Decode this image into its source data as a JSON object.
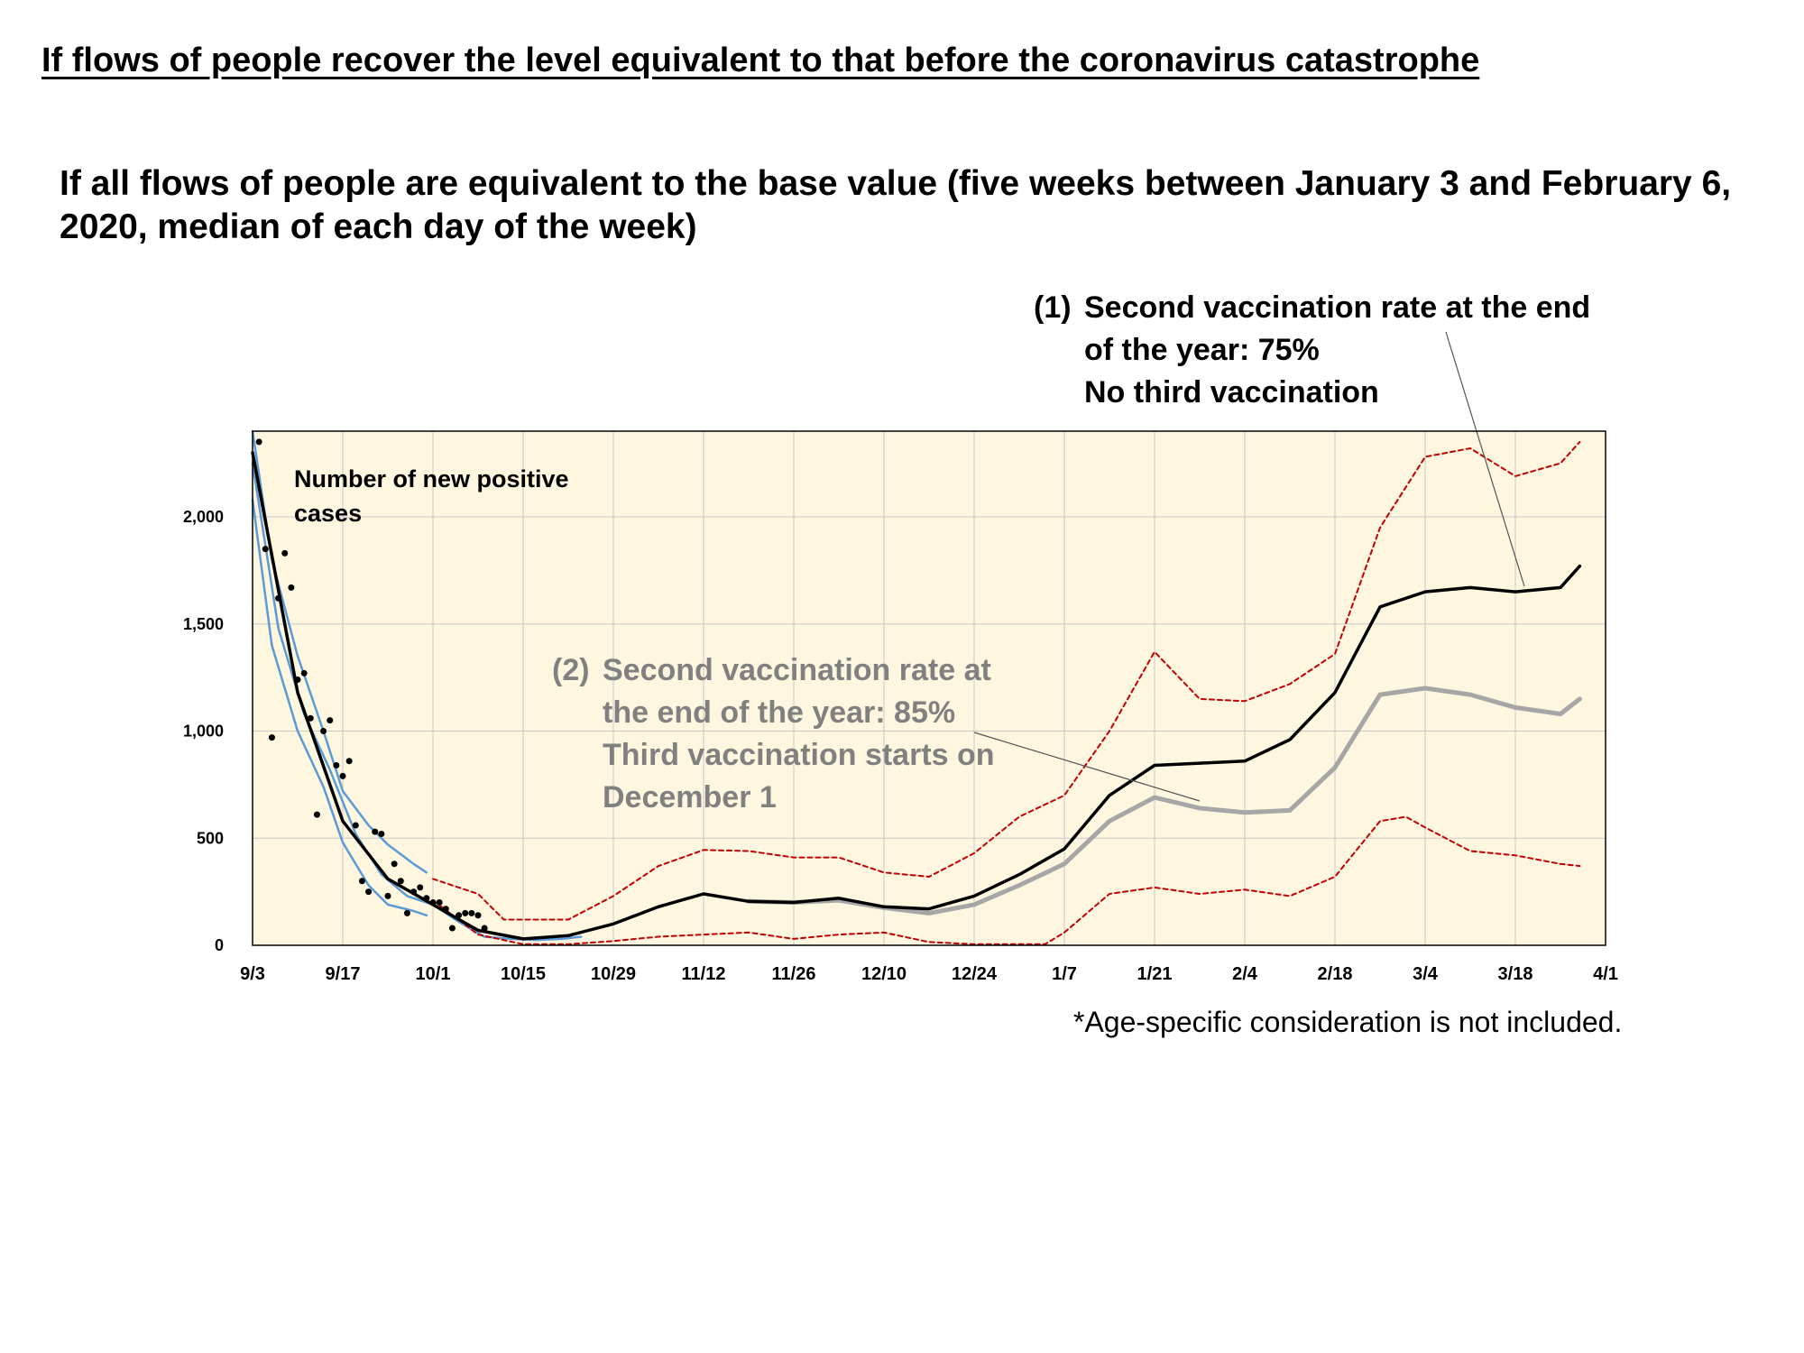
{
  "header": {
    "title": "If flows of people recover the level equivalent to that before the coronavirus catastrophe",
    "subtitle": "If all flows of people are equivalent to the base value (five weeks between January 3 and February 6, 2020, median of each day of the week)"
  },
  "annotations": {
    "scenario1": {
      "number": "(1)",
      "lines": [
        "Second vaccination rate at the end",
        "of the year: 75%",
        "No third vaccination"
      ]
    },
    "scenario2": {
      "number": "(2)",
      "lines": [
        "Second vaccination rate at",
        "the end of the year: 85%",
        "Third vaccination starts on",
        "December 1"
      ]
    },
    "note": "*Age-specific consideration is not included."
  },
  "colors": {
    "plot_background": "#fff6e0",
    "grid": "#c8c8c8",
    "scenario1_line": "#000000",
    "scenario2_line": "#a6a6a6",
    "interval_band": "#c00000",
    "fitted_band": "#5b9bd5",
    "observed_points": "#000000"
  },
  "chart_data": {
    "type": "line",
    "title": "",
    "xlabel": "",
    "ylabel": "Number of new positive cases",
    "x_domain": [
      "9/3",
      "4/1"
    ],
    "ylim": [
      0,
      2400
    ],
    "grid": true,
    "y_ticks": [
      0,
      500,
      1000,
      1500,
      2000
    ],
    "y_tick_labels": [
      "0",
      "500",
      "1,000",
      "1,500",
      "2,000"
    ],
    "x_ticks": [
      "9/3",
      "9/17",
      "10/1",
      "10/15",
      "10/29",
      "11/12",
      "11/26",
      "12/10",
      "12/24",
      "1/7",
      "1/21",
      "2/4",
      "2/18",
      "3/4",
      "3/18",
      "4/1"
    ],
    "series": [
      {
        "name": "(1)",
        "style": "solid-black",
        "x": [
          "9/3",
          "9/10",
          "9/17",
          "9/24",
          "10/1",
          "10/8",
          "10/15",
          "10/22",
          "10/29",
          "11/5",
          "11/12",
          "11/19",
          "11/26",
          "12/3",
          "12/10",
          "12/17",
          "12/24",
          "12/31",
          "1/7",
          "1/14",
          "1/21",
          "1/28",
          "2/4",
          "2/11",
          "2/18",
          "2/25",
          "3/4",
          "3/11",
          "3/18",
          "3/25",
          "3/28"
        ],
        "y": [
          2300,
          1180,
          580,
          310,
          190,
          70,
          30,
          45,
          100,
          180,
          240,
          205,
          200,
          220,
          180,
          170,
          230,
          330,
          450,
          700,
          840,
          850,
          860,
          960,
          1180,
          1580,
          1650,
          1670,
          1650,
          1670,
          1770
        ]
      },
      {
        "name": "(2)",
        "style": "solid-gray",
        "x": [
          "11/19",
          "11/26",
          "12/3",
          "12/10",
          "12/17",
          "12/24",
          "12/31",
          "1/7",
          "1/14",
          "1/21",
          "1/28",
          "2/4",
          "2/11",
          "2/18",
          "2/25",
          "3/4",
          "3/11",
          "3/18",
          "3/25",
          "3/28"
        ],
        "y": [
          205,
          200,
          210,
          175,
          150,
          190,
          280,
          380,
          580,
          690,
          640,
          620,
          630,
          830,
          1170,
          1200,
          1170,
          1110,
          1080,
          1150
        ]
      },
      {
        "name": "",
        "style": "dashed-red-upper",
        "x": [
          "10/1",
          "10/8",
          "10/12",
          "10/22",
          "10/29",
          "11/5",
          "11/12",
          "11/19",
          "11/26",
          "12/3",
          "12/10",
          "12/17",
          "12/24",
          "12/31",
          "1/7",
          "1/14",
          "1/21",
          "1/28",
          "2/4",
          "2/11",
          "2/18",
          "2/25",
          "3/4",
          "3/11",
          "3/18",
          "3/25",
          "3/28"
        ],
        "y": [
          310,
          240,
          120,
          120,
          230,
          370,
          445,
          440,
          410,
          410,
          340,
          320,
          430,
          600,
          700,
          1000,
          1370,
          1150,
          1140,
          1220,
          1360,
          1950,
          2280,
          2320,
          2190,
          2250,
          2350
        ]
      },
      {
        "name": "",
        "style": "dashed-red-lower",
        "x": [
          "10/1",
          "10/8",
          "10/15",
          "10/22",
          "10/29",
          "11/5",
          "11/12",
          "11/19",
          "11/26",
          "12/3",
          "12/10",
          "12/17",
          "12/24",
          "12/31",
          "1/4",
          "1/7",
          "1/14",
          "1/21",
          "1/28",
          "2/4",
          "2/11",
          "2/18",
          "2/25",
          "3/1",
          "3/4",
          "3/11",
          "3/18",
          "3/25",
          "3/28"
        ],
        "y": [
          210,
          50,
          5,
          5,
          20,
          40,
          50,
          60,
          30,
          50,
          60,
          15,
          5,
          5,
          5,
          60,
          240,
          270,
          240,
          260,
          230,
          320,
          580,
          600,
          550,
          440,
          420,
          380,
          370
        ]
      },
      {
        "name": "",
        "style": "blue-upper",
        "x": [
          "9/3",
          "9/6",
          "9/10",
          "9/14",
          "9/17",
          "9/21",
          "9/24",
          "9/28",
          "9/30"
        ],
        "y": [
          2400,
          1800,
          1350,
          1000,
          720,
          560,
          470,
          380,
          340
        ]
      },
      {
        "name": "",
        "style": "blue-lower",
        "x": [
          "9/3",
          "9/6",
          "9/10",
          "9/14",
          "9/17",
          "9/21",
          "9/24",
          "9/28",
          "9/30"
        ],
        "y": [
          2080,
          1400,
          1000,
          740,
          480,
          280,
          190,
          160,
          140
        ]
      },
      {
        "name": "",
        "style": "blue-mid",
        "x": [
          "9/3",
          "9/7",
          "9/11",
          "9/15",
          "9/19",
          "9/23",
          "9/27",
          "10/1",
          "10/5",
          "10/9",
          "10/13",
          "10/17",
          "10/21",
          "10/24"
        ],
        "y": [
          2250,
          1480,
          1080,
          820,
          520,
          330,
          230,
          190,
          110,
          40,
          30,
          25,
          30,
          40
        ]
      }
    ],
    "observed_points": {
      "x": [
        "9/4",
        "9/5",
        "9/6",
        "9/7",
        "9/8",
        "9/9",
        "9/10",
        "9/11",
        "9/12",
        "9/13",
        "9/14",
        "9/15",
        "9/16",
        "9/17",
        "9/18",
        "9/19",
        "9/20",
        "9/21",
        "9/22",
        "9/23",
        "9/24",
        "9/25",
        "9/26",
        "9/27",
        "9/28",
        "9/29",
        "9/30",
        "10/1",
        "10/2",
        "10/3",
        "10/4",
        "10/5",
        "10/6",
        "10/7",
        "10/8",
        "10/9"
      ],
      "y": [
        2350,
        1850,
        970,
        1620,
        1830,
        1670,
        1240,
        1270,
        1060,
        610,
        1000,
        1050,
        840,
        790,
        860,
        560,
        300,
        250,
        530,
        520,
        230,
        380,
        300,
        150,
        250,
        270,
        220,
        200,
        200,
        170,
        80,
        140,
        150,
        150,
        140,
        80
      ]
    }
  }
}
